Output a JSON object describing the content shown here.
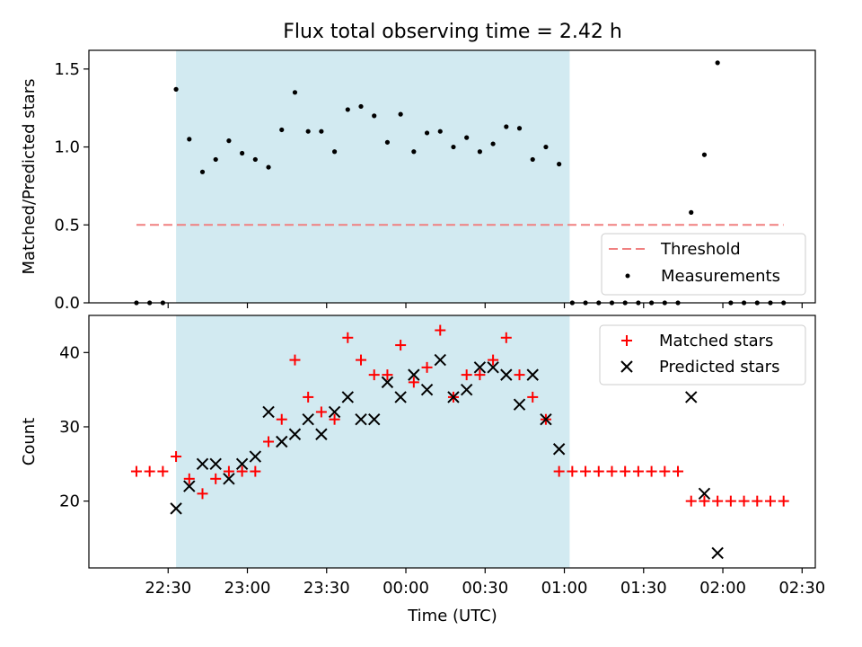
{
  "chart_data": {
    "type": "scatter",
    "title": "Flux total observing time = 2.42 h",
    "xlabel": "Time (UTC)",
    "x_ticks": [
      "22:30",
      "23:00",
      "23:30",
      "00:00",
      "00:30",
      "01:00",
      "01:30",
      "02:00",
      "02:30"
    ],
    "x_tick_minutes": [
      0,
      30,
      60,
      90,
      120,
      150,
      180,
      210,
      240
    ],
    "shaded_span": {
      "start_minute": 3,
      "end_minute": 152,
      "color": "#add8e6"
    },
    "panels": [
      {
        "ylabel": "Matched/Predicted stars",
        "ylim": [
          0,
          1.62
        ],
        "y_ticks": [
          "0.0",
          "0.5",
          "1.0",
          "1.5"
        ],
        "y_tick_values": [
          0,
          0.5,
          1.0,
          1.5
        ],
        "legend_position": "lower-right",
        "threshold": {
          "name": "Threshold",
          "value": 0.5,
          "x_range": [
            -12,
            233
          ],
          "color": "#f08080"
        },
        "series": [
          {
            "name": "Measurements",
            "marker": "dot",
            "color": "#000000",
            "x": [
              -12,
              -7,
              -2,
              3,
              8,
              13,
              18,
              23,
              28,
              33,
              38,
              43,
              48,
              53,
              58,
              63,
              68,
              73,
              78,
              83,
              88,
              93,
              98,
              103,
              108,
              113,
              118,
              123,
              128,
              133,
              138,
              143,
              148,
              153,
              158,
              163,
              168,
              173,
              178,
              183,
              188,
              193,
              198,
              203,
              208,
              213,
              218,
              223,
              228,
              233
            ],
            "y": [
              0,
              0,
              0,
              1.37,
              1.05,
              0.84,
              0.92,
              1.04,
              0.96,
              0.92,
              0.87,
              1.11,
              1.35,
              1.1,
              1.1,
              0.97,
              1.24,
              1.26,
              1.2,
              1.03,
              1.21,
              0.97,
              1.09,
              1.1,
              1.0,
              1.06,
              0.97,
              1.02,
              1.13,
              1.12,
              0.92,
              1.0,
              0.89,
              0,
              0,
              0,
              0,
              0,
              0,
              0,
              0,
              0,
              0.58,
              0.95,
              1.54,
              0,
              0,
              0,
              0,
              0
            ]
          }
        ]
      },
      {
        "ylabel": "Count",
        "ylim": [
          11,
          45
        ],
        "y_ticks": [
          "20",
          "30",
          "40"
        ],
        "y_tick_values": [
          20,
          30,
          40
        ],
        "legend_position": "upper-right",
        "series": [
          {
            "name": "Matched stars",
            "marker": "plus",
            "color": "#ff0000",
            "x": [
              -12,
              -7,
              -2,
              3,
              8,
              13,
              18,
              23,
              28,
              33,
              38,
              43,
              48,
              53,
              58,
              63,
              68,
              73,
              78,
              83,
              88,
              93,
              98,
              103,
              108,
              113,
              118,
              123,
              128,
              133,
              138,
              143,
              148,
              153,
              158,
              163,
              168,
              173,
              178,
              183,
              188,
              193,
              198,
              203,
              208,
              213,
              218,
              223,
              228,
              233
            ],
            "y": [
              24,
              24,
              24,
              26,
              23,
              21,
              23,
              24,
              24,
              24,
              28,
              31,
              39,
              34,
              32,
              31,
              42,
              39,
              37,
              37,
              41,
              36,
              38,
              43,
              34,
              37,
              37,
              39,
              42,
              37,
              34,
              31,
              24,
              24,
              24,
              24,
              24,
              24,
              24,
              24,
              24,
              24,
              20,
              20,
              20,
              20,
              20,
              20,
              20,
              20
            ]
          },
          {
            "name": "Predicted stars",
            "marker": "x",
            "color": "#000000",
            "x": [
              3,
              8,
              13,
              18,
              23,
              28,
              33,
              38,
              43,
              48,
              53,
              58,
              63,
              68,
              73,
              78,
              83,
              88,
              93,
              98,
              103,
              108,
              113,
              118,
              123,
              128,
              133,
              138,
              143,
              148,
              198,
              203,
              208
            ],
            "y": [
              19,
              22,
              25,
              25,
              23,
              25,
              26,
              32,
              28,
              29,
              31,
              29,
              32,
              34,
              31,
              31,
              36,
              34,
              37,
              35,
              39,
              34,
              35,
              38,
              38,
              37,
              33,
              37,
              31,
              27,
              34,
              21,
              13
            ]
          }
        ]
      }
    ]
  }
}
